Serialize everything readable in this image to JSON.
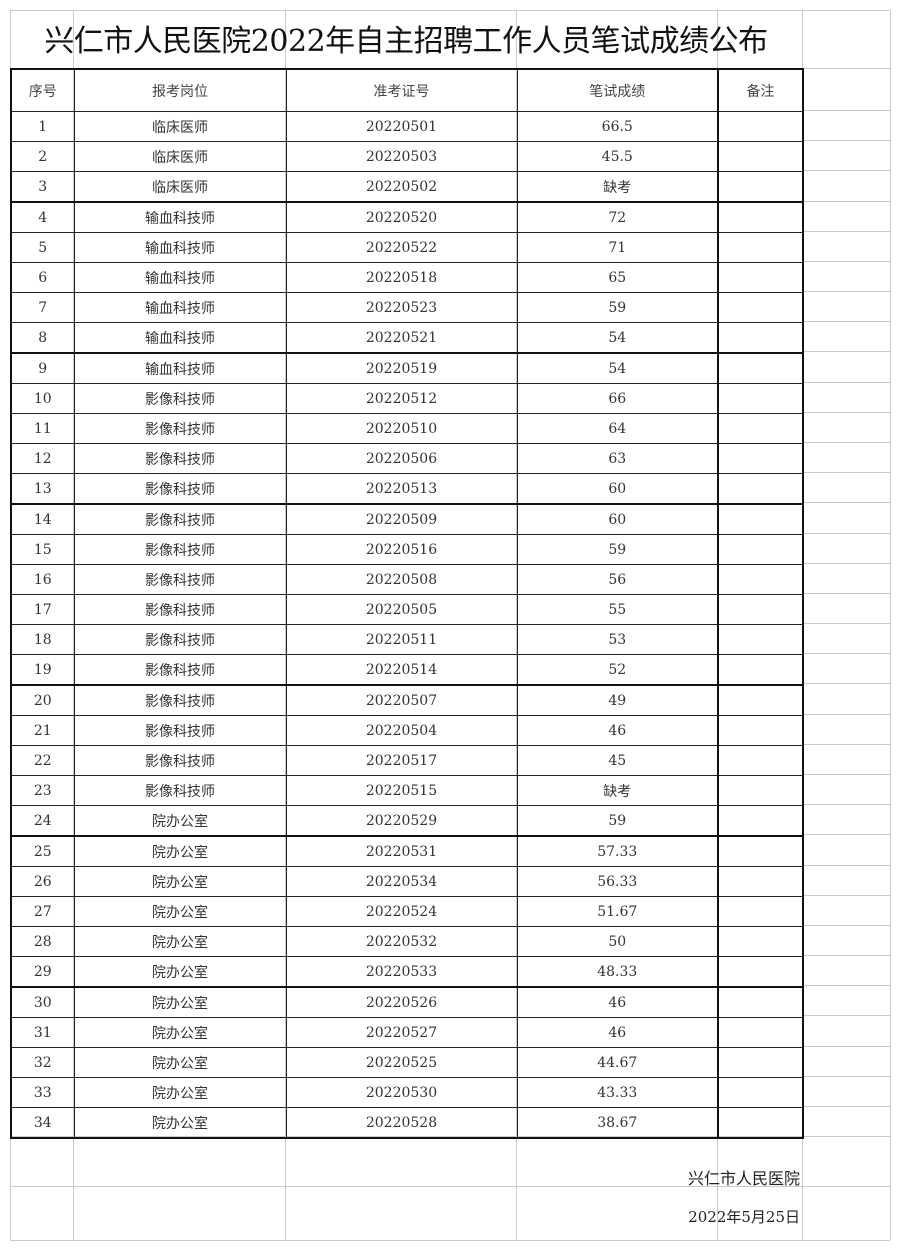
{
  "title": "兴仁市人民医院2022年自主招聘工作人员笔试成绩公布",
  "headers": [
    "序号",
    "报考岗位",
    "准考证号",
    "笔试成绩",
    "备注"
  ],
  "rows": [
    [
      "1",
      "临床医师",
      "20220501",
      "66.5",
      ""
    ],
    [
      "2",
      "临床医师",
      "20220503",
      "45.5",
      ""
    ],
    [
      "3",
      "临床医师",
      "20220502",
      "缺考",
      ""
    ],
    [
      "4",
      "输血科技师",
      "20220520",
      "72",
      ""
    ],
    [
      "5",
      "输血科技师",
      "20220522",
      "71",
      ""
    ],
    [
      "6",
      "输血科技师",
      "20220518",
      "65",
      ""
    ],
    [
      "7",
      "输血科技师",
      "20220523",
      "59",
      ""
    ],
    [
      "8",
      "输血科技师",
      "20220521",
      "54",
      ""
    ],
    [
      "9",
      "输血科技师",
      "20220519",
      "54",
      ""
    ],
    [
      "10",
      "影像科技师",
      "20220512",
      "66",
      ""
    ],
    [
      "11",
      "影像科技师",
      "20220510",
      "64",
      ""
    ],
    [
      "12",
      "影像科技师",
      "20220506",
      "63",
      ""
    ],
    [
      "13",
      "影像科技师",
      "20220513",
      "60",
      ""
    ],
    [
      "14",
      "影像科技师",
      "20220509",
      "60",
      ""
    ],
    [
      "15",
      "影像科技师",
      "20220516",
      "59",
      ""
    ],
    [
      "16",
      "影像科技师",
      "20220508",
      "56",
      ""
    ],
    [
      "17",
      "影像科技师",
      "20220505",
      "55",
      ""
    ],
    [
      "18",
      "影像科技师",
      "20220511",
      "53",
      ""
    ],
    [
      "19",
      "影像科技师",
      "20220514",
      "52",
      ""
    ],
    [
      "20",
      "影像科技师",
      "20220507",
      "49",
      ""
    ],
    [
      "21",
      "影像科技师",
      "20220504",
      "46",
      ""
    ],
    [
      "22",
      "影像科技师",
      "20220517",
      "45",
      ""
    ],
    [
      "23",
      "影像科技师",
      "20220515",
      "缺考",
      ""
    ],
    [
      "24",
      "院办公室",
      "20220529",
      "59",
      ""
    ],
    [
      "25",
      "院办公室",
      "20220531",
      "57.33",
      ""
    ],
    [
      "26",
      "院办公室",
      "20220534",
      "56.33",
      ""
    ],
    [
      "27",
      "院办公室",
      "20220524",
      "51.67",
      ""
    ],
    [
      "28",
      "院办公室",
      "20220532",
      "50",
      ""
    ],
    [
      "29",
      "院办公室",
      "20220533",
      "48.33",
      ""
    ],
    [
      "30",
      "院办公室",
      "20220526",
      "46",
      ""
    ],
    [
      "31",
      "院办公室",
      "20220527",
      "46",
      ""
    ],
    [
      "32",
      "院办公室",
      "20220525",
      "44.67",
      ""
    ],
    [
      "33",
      "院办公室",
      "20220530",
      "43.33",
      ""
    ],
    [
      "34",
      "院办公室",
      "20220528",
      "38.67",
      ""
    ]
  ],
  "footer": {
    "org": "兴仁市人民医院",
    "date": "2022年5月25日"
  }
}
